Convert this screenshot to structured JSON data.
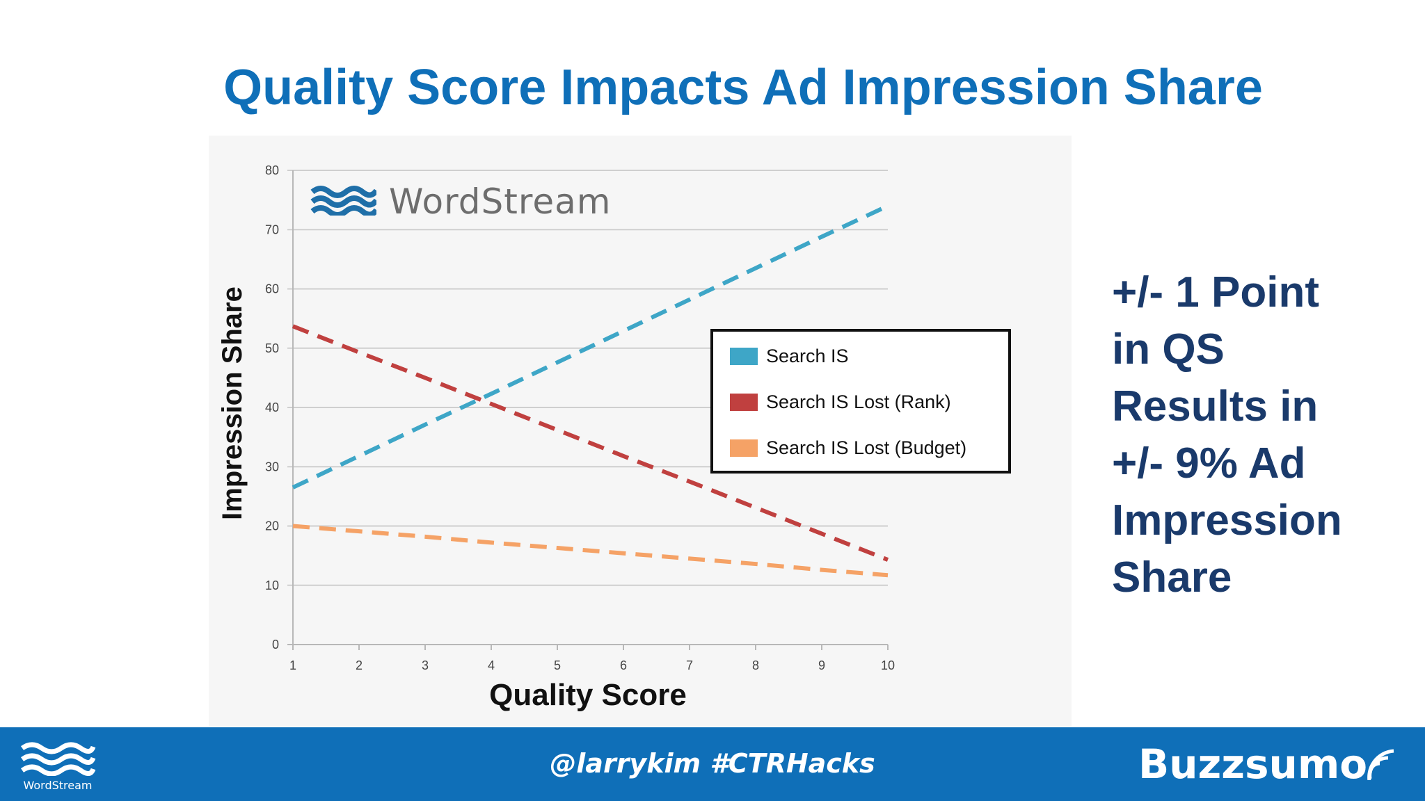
{
  "slide": {
    "title": "Quality Score Impacts Ad Impression Share"
  },
  "chart_logo": {
    "icon": "waves-icon",
    "text": "WordStream"
  },
  "side_text": {
    "lines": [
      "+/- 1 Point",
      "in QS",
      "Results in",
      "+/- 9% Ad",
      "Impression",
      "Share"
    ]
  },
  "footer": {
    "logo_text": "WordStream",
    "handle": "@larrykim #CTRHacks",
    "brand": "Buzzsumo",
    "brand_icon": "signal-icon",
    "background": "#0f6fb8"
  },
  "chart_data": {
    "type": "line",
    "title": "",
    "xlabel": "Quality Score",
    "ylabel": "Impression Share",
    "x": [
      1,
      2,
      3,
      4,
      5,
      6,
      7,
      8,
      9,
      10
    ],
    "xlim": [
      1,
      10
    ],
    "ylim": [
      0,
      80
    ],
    "yticks": [
      0,
      10,
      20,
      30,
      40,
      50,
      60,
      70,
      80
    ],
    "grid": true,
    "line_style": "dashed",
    "legend_position": "right",
    "series": [
      {
        "name": "Search IS",
        "color": "#3ea6c7",
        "values": [
          26.5,
          31.8,
          37.1,
          42.3,
          47.6,
          52.9,
          58.2,
          63.5,
          68.8,
          74
        ]
      },
      {
        "name": "Search IS Lost (Rank)",
        "color": "#c0403f",
        "values": [
          53.7,
          49.3,
          45.0,
          40.6,
          36.2,
          31.8,
          27.5,
          23.1,
          18.7,
          14.3
        ]
      },
      {
        "name": "Search IS Lost (Budget)",
        "color": "#f5a266",
        "values": [
          20,
          19.1,
          18.2,
          17.2,
          16.3,
          15.4,
          14.5,
          13.6,
          12.6,
          11.7
        ]
      }
    ]
  }
}
